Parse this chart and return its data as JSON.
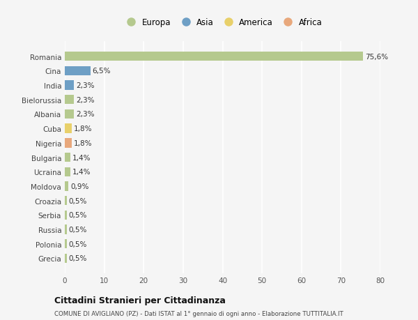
{
  "countries": [
    "Romania",
    "Cina",
    "India",
    "Bielorussia",
    "Albania",
    "Cuba",
    "Nigeria",
    "Bulgaria",
    "Ucraina",
    "Moldova",
    "Croazia",
    "Serbia",
    "Russia",
    "Polonia",
    "Grecia"
  ],
  "values": [
    75.6,
    6.5,
    2.3,
    2.3,
    2.3,
    1.8,
    1.8,
    1.4,
    1.4,
    0.9,
    0.5,
    0.5,
    0.5,
    0.5,
    0.5
  ],
  "labels": [
    "75,6%",
    "6,5%",
    "2,3%",
    "2,3%",
    "2,3%",
    "1,8%",
    "1,8%",
    "1,4%",
    "1,4%",
    "0,9%",
    "0,5%",
    "0,5%",
    "0,5%",
    "0,5%",
    "0,5%"
  ],
  "continents": [
    "Europa",
    "Asia",
    "Asia",
    "Europa",
    "Europa",
    "America",
    "Africa",
    "Europa",
    "Europa",
    "Europa",
    "Europa",
    "Europa",
    "Europa",
    "Europa",
    "Europa"
  ],
  "colors": {
    "Europa": "#b5c98e",
    "Asia": "#6e9fc5",
    "America": "#e8d06a",
    "Africa": "#e8a87c"
  },
  "legend_order": [
    "Europa",
    "Asia",
    "America",
    "Africa"
  ],
  "legend_colors": [
    "#b5c98e",
    "#6e9fc5",
    "#e8d06a",
    "#e8a87c"
  ],
  "xlim": [
    0,
    80
  ],
  "xticks": [
    0,
    10,
    20,
    30,
    40,
    50,
    60,
    70,
    80
  ],
  "background_color": "#f5f5f5",
  "plot_bg_color": "#f5f5f5",
  "title": "Cittadini Stranieri per Cittadinanza",
  "subtitle": "COMUNE DI AVIGLIANO (PZ) - Dati ISTAT al 1° gennaio di ogni anno - Elaborazione TUTTITALIA.IT",
  "grid_color": "#ffffff",
  "bar_height": 0.65,
  "label_fontsize": 7.5,
  "tick_fontsize": 7.5,
  "legend_fontsize": 8.5
}
